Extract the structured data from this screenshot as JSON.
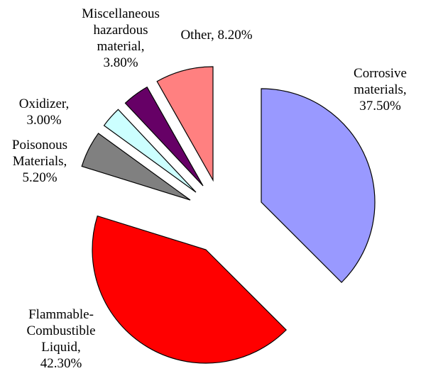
{
  "chart_data": {
    "type": "pie",
    "categories": [
      "Corrosive materials,",
      "Flammable-Combustible Liquid,",
      "Poisonous Materials,",
      "Oxidizer,",
      "Miscellaneous hazardous material,",
      "Other,"
    ],
    "values": [
      37.5,
      42.3,
      5.2,
      3.0,
      3.8,
      8.2
    ],
    "value_labels": [
      "37.50%",
      "42.30%",
      "5.20%",
      "3.00%",
      "3.80%",
      "8.20%"
    ],
    "colors": [
      "#9999ff",
      "#ff0000",
      "#808080",
      "#ccffff",
      "#660066",
      "#ff8080"
    ]
  }
}
